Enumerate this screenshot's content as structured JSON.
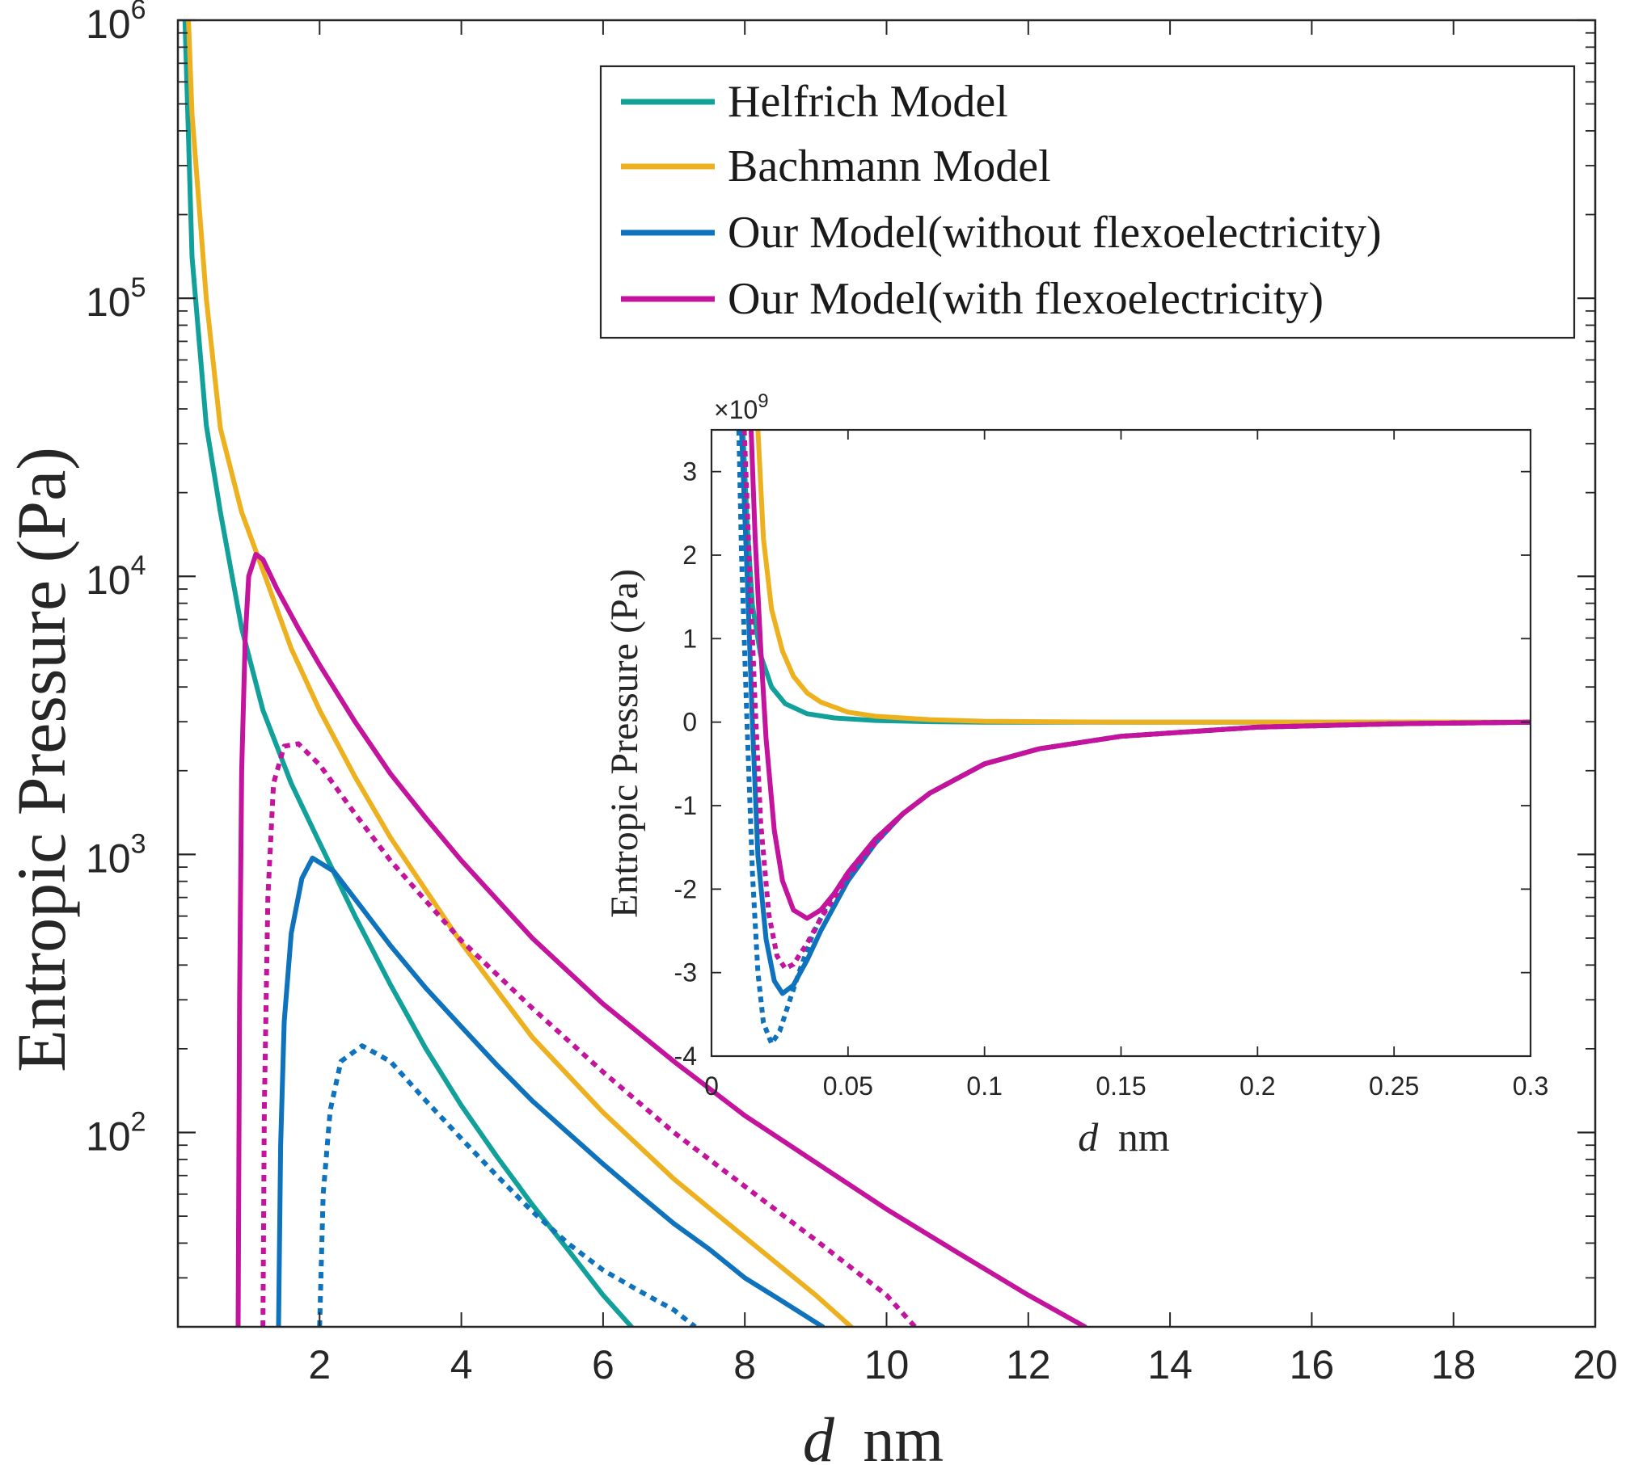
{
  "chart_data": [
    {
      "type": "line",
      "xlabel_var": "d",
      "xlabel_unit": "nm",
      "ylabel": "Entropic Pressure (Pa)",
      "xlim": [
        0,
        20
      ],
      "ylim": [
        20,
        1000000
      ],
      "yscale": "log",
      "xticks": [
        2,
        4,
        6,
        8,
        10,
        12,
        14,
        16,
        18,
        20
      ],
      "yticks": [
        {
          "value": 100,
          "base": "10",
          "exp": "2"
        },
        {
          "value": 1000,
          "base": "10",
          "exp": "3"
        },
        {
          "value": 10000,
          "base": "10",
          "exp": "4"
        },
        {
          "value": 100000,
          "base": "10",
          "exp": "5"
        },
        {
          "value": 1000000,
          "base": "10",
          "exp": "6"
        }
      ],
      "grid": false,
      "legend_position": "top-right",
      "series": [
        {
          "name": "Helfrich Model",
          "color": "#12a19a",
          "style": "solid",
          "x": [
            0.1,
            0.2,
            0.4,
            0.6,
            0.9,
            1.2,
            1.6,
            2.0,
            2.5,
            3.0,
            3.5,
            4.0,
            4.5,
            5.0,
            5.5,
            6.0,
            6.4
          ],
          "y": [
            1000000,
            141000,
            35000,
            17000,
            6500,
            3300,
            1800,
            1100,
            600,
            340,
            200,
            125,
            82,
            55,
            38,
            26,
            20
          ]
        },
        {
          "name": "Bachmann Model",
          "color": "#edb120",
          "style": "solid",
          "x": [
            0.15,
            0.2,
            0.4,
            0.6,
            0.9,
            1.2,
            1.6,
            2.0,
            2.5,
            3.0,
            4.0,
            5.0,
            6.0,
            7.0,
            8.0,
            9.0,
            9.5
          ],
          "y": [
            1000000,
            460000,
            100000,
            34000,
            17000,
            10500,
            5500,
            3300,
            1900,
            1150,
            480,
            220,
            118,
            68,
            42,
            26,
            20
          ]
        },
        {
          "name": "Our Model(without flexoelectricity)",
          "color": "#0e72bd",
          "style": "solid",
          "x": [
            1.42,
            1.45,
            1.5,
            1.6,
            1.75,
            1.9,
            2.2,
            2.6,
            3.0,
            3.5,
            4.0,
            4.5,
            5.0,
            5.5,
            6.0,
            6.5,
            7.0,
            7.5,
            8.0,
            8.5,
            9.1
          ],
          "y": [
            20,
            90,
            250,
            520,
            820,
            970,
            870,
            640,
            470,
            330,
            240,
            175,
            130,
            100,
            77,
            60,
            47,
            38,
            30,
            25,
            20
          ]
        },
        {
          "name": "Our Model(without flexoelectricity), dotted",
          "color": "#0e72bd",
          "style": "dotted",
          "x": [
            2.0,
            2.05,
            2.15,
            2.3,
            2.6,
            3.0,
            3.5,
            4.0,
            4.5,
            5.0,
            5.5,
            6.0,
            6.5,
            7.0,
            7.3
          ],
          "y": [
            20,
            60,
            120,
            180,
            205,
            180,
            130,
            95,
            70,
            52,
            40,
            32,
            27,
            23,
            20
          ]
        },
        {
          "name": "Our Model(with flexoelectricity)",
          "color": "#c4139c",
          "style": "solid",
          "x": [
            0.85,
            0.87,
            0.9,
            0.95,
            1.0,
            1.1,
            1.2,
            1.4,
            1.7,
            2.0,
            2.5,
            3.0,
            3.5,
            4.0,
            5.0,
            6.0,
            7.0,
            8.0,
            9.0,
            10.0,
            11.0,
            12.0,
            12.8
          ],
          "y": [
            20,
            300,
            2000,
            6000,
            10000,
            12000,
            11500,
            9000,
            6500,
            4800,
            3000,
            1950,
            1350,
            950,
            500,
            290,
            180,
            115,
            78,
            53,
            37,
            26,
            20
          ]
        },
        {
          "name": "Our Model(with flexoelectricity), dotted",
          "color": "#c4139c",
          "style": "dotted",
          "x": [
            1.2,
            1.22,
            1.27,
            1.35,
            1.5,
            1.7,
            2.0,
            2.5,
            3.0,
            3.5,
            4.0,
            5.0,
            6.0,
            7.0,
            8.0,
            9.0,
            10.0,
            10.4
          ],
          "y": [
            20,
            120,
            700,
            1800,
            2450,
            2500,
            2100,
            1400,
            950,
            680,
            490,
            280,
            165,
            100,
            64,
            41,
            26,
            20
          ]
        }
      ]
    },
    {
      "type": "line",
      "xlabel_var": "d",
      "xlabel_unit": "nm",
      "ylabel": "Entropic Pressure (Pa)",
      "multiplier": "×10",
      "multiplier_exp": "9",
      "xlim": [
        0,
        0.3
      ],
      "ylim": [
        -4,
        3.5
      ],
      "xticks": [
        "0",
        "0.05",
        "0.1",
        "0.15",
        "0.2",
        "0.25",
        "0.3"
      ],
      "yticks": [
        "-4",
        "-3",
        "-2",
        "-1",
        "0",
        "1",
        "2",
        "3"
      ],
      "grid": false,
      "series": [
        {
          "name": "Helfrich Model",
          "color": "#12a19a",
          "style": "solid",
          "x": [
            0.0115,
            0.013,
            0.015,
            0.018,
            0.022,
            0.027,
            0.035,
            0.045,
            0.06,
            0.08,
            0.1,
            0.15,
            0.2,
            0.3
          ],
          "y": [
            3.5,
            2.4,
            1.4,
            0.8,
            0.42,
            0.22,
            0.1,
            0.05,
            0.02,
            0.005,
            0,
            0,
            0,
            0
          ]
        },
        {
          "name": "Bachmann Model",
          "color": "#edb120",
          "style": "solid",
          "x": [
            0.017,
            0.019,
            0.022,
            0.026,
            0.03,
            0.035,
            0.04,
            0.05,
            0.06,
            0.08,
            0.1,
            0.15,
            0.2,
            0.3
          ],
          "y": [
            3.5,
            2.2,
            1.35,
            0.85,
            0.55,
            0.35,
            0.24,
            0.12,
            0.07,
            0.03,
            0.01,
            0,
            0,
            0
          ]
        },
        {
          "name": "Our Model(without flexoelectricity)",
          "color": "#0e72bd",
          "style": "solid",
          "x": [
            0.011,
            0.013,
            0.015,
            0.017,
            0.02,
            0.023,
            0.026,
            0.03,
            0.035,
            0.04,
            0.05,
            0.06,
            0.07,
            0.08,
            0.1,
            0.12,
            0.15,
            0.2,
            0.25,
            0.3
          ],
          "y": [
            3.5,
            1.8,
            0.0,
            -1.6,
            -2.6,
            -3.1,
            -3.25,
            -3.15,
            -2.85,
            -2.5,
            -1.9,
            -1.45,
            -1.1,
            -0.85,
            -0.5,
            -0.32,
            -0.17,
            -0.06,
            -0.02,
            0
          ]
        },
        {
          "name": "Our Model(without flexoelectricity), dotted",
          "color": "#0e72bd",
          "style": "dotted",
          "x": [
            0.01,
            0.011,
            0.013,
            0.015,
            0.017,
            0.019,
            0.022,
            0.025,
            0.028,
            0.032,
            0.037,
            0.043,
            0.05,
            0.06,
            0.07,
            0.08,
            0.1,
            0.12,
            0.15,
            0.2,
            0.25,
            0.3
          ],
          "y": [
            3.5,
            2.0,
            0.0,
            -1.8,
            -3.0,
            -3.6,
            -3.85,
            -3.7,
            -3.4,
            -3.0,
            -2.55,
            -2.15,
            -1.8,
            -1.4,
            -1.1,
            -0.85,
            -0.5,
            -0.32,
            -0.17,
            -0.06,
            -0.02,
            0
          ]
        },
        {
          "name": "Our Model(with flexoelectricity)",
          "color": "#c4139c",
          "style": "solid",
          "x": [
            0.0145,
            0.016,
            0.018,
            0.02,
            0.023,
            0.026,
            0.03,
            0.035,
            0.04,
            0.045,
            0.05,
            0.06,
            0.07,
            0.08,
            0.1,
            0.12,
            0.15,
            0.2,
            0.25,
            0.3
          ],
          "y": [
            3.5,
            2.2,
            0.9,
            -0.2,
            -1.3,
            -1.9,
            -2.25,
            -2.35,
            -2.25,
            -2.05,
            -1.8,
            -1.4,
            -1.1,
            -0.85,
            -0.5,
            -0.32,
            -0.17,
            -0.06,
            -0.02,
            0
          ]
        },
        {
          "name": "Our Model(with flexoelectricity), dotted",
          "color": "#c4139c",
          "style": "dotted",
          "x": [
            0.012,
            0.014,
            0.016,
            0.018,
            0.021,
            0.024,
            0.027,
            0.03,
            0.035,
            0.04,
            0.05,
            0.06,
            0.07,
            0.08,
            0.1,
            0.12,
            0.15,
            0.2,
            0.25,
            0.3
          ],
          "y": [
            3.5,
            1.8,
            0.2,
            -1.2,
            -2.3,
            -2.8,
            -2.95,
            -2.9,
            -2.65,
            -2.35,
            -1.85,
            -1.45,
            -1.1,
            -0.85,
            -0.5,
            -0.32,
            -0.17,
            -0.06,
            -0.02,
            0
          ]
        }
      ]
    }
  ]
}
